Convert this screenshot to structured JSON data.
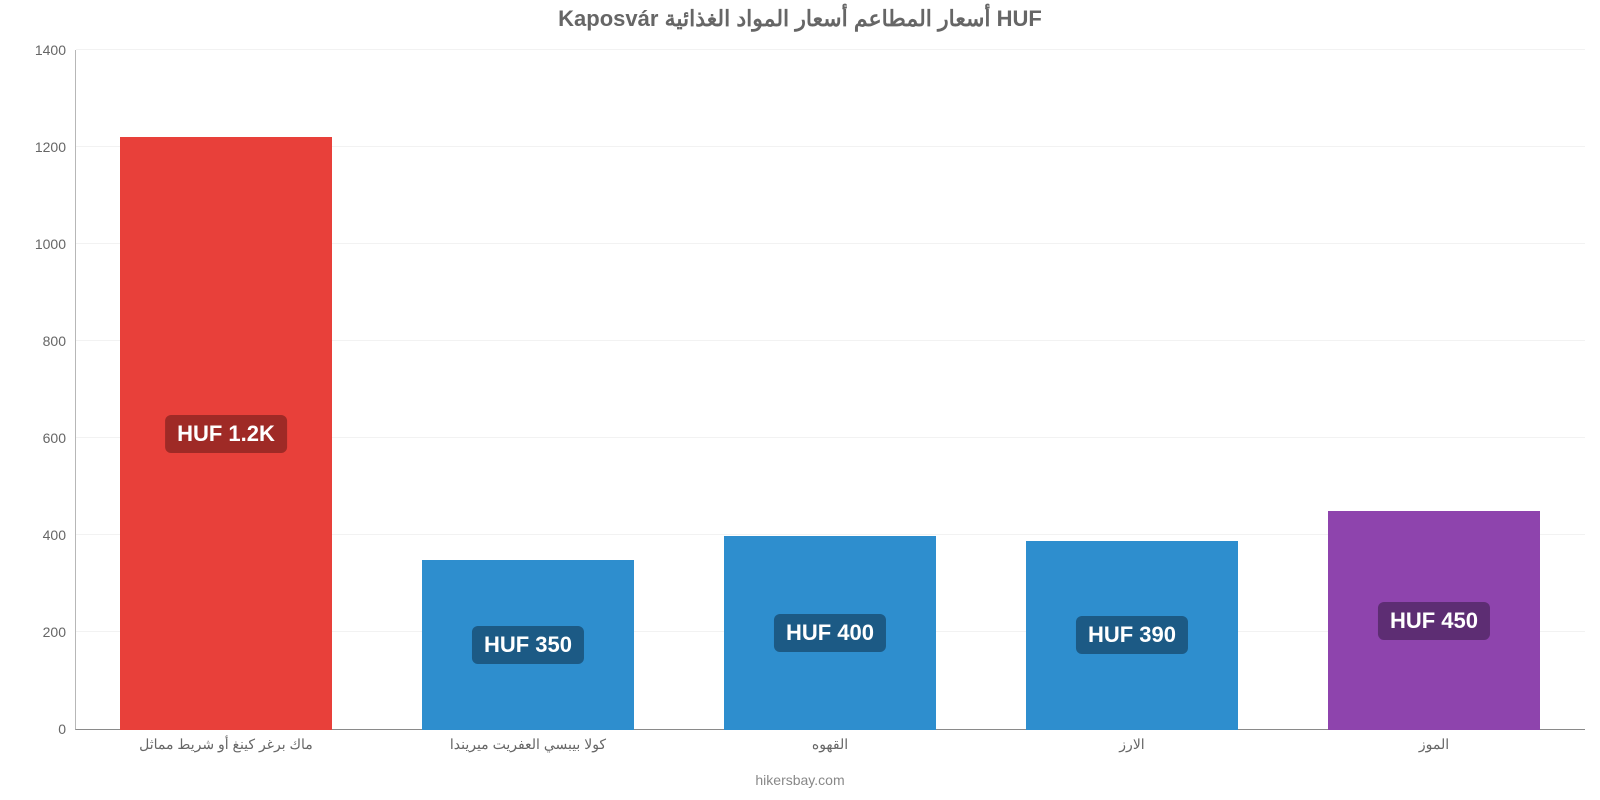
{
  "chart": {
    "type": "bar",
    "title": "Kaposvár أسعار المطاعم أسعار المواد الغذائية HUF",
    "title_color": "#666666",
    "title_fontsize": 22,
    "background_color": "#ffffff",
    "grid_color": "#f2f2f2",
    "axis_color": "#b7b7b7",
    "tick_color": "#666666",
    "tick_fontsize": 14,
    "ylim": [
      0,
      1400
    ],
    "yticks": [
      0,
      200,
      400,
      600,
      800,
      1000,
      1200,
      1400
    ],
    "ytick_labels": [
      "0",
      "200",
      "400",
      "600",
      "800",
      "1000",
      "1200",
      "1400"
    ],
    "bar_width": 0.7,
    "value_label_fontsize": 22,
    "categories": [
      "ماك برغر كينغ أو شريط مماثل",
      "كولا بيبسي العفريت ميريندا",
      "القهوه",
      "الارز",
      "الموز"
    ],
    "values": [
      1220,
      350,
      400,
      390,
      450
    ],
    "value_labels": [
      "HUF 1.2K",
      "HUF 350",
      "HUF 400",
      "HUF 390",
      "HUF 450"
    ],
    "bar_colors": [
      "#e8403a",
      "#2e8ece",
      "#2e8ece",
      "#2e8ece",
      "#8e44ad"
    ],
    "label_bg_colors": [
      "#9f2a26",
      "#1c5a85",
      "#1c5a85",
      "#1c5a85",
      "#5d2d73"
    ],
    "credit": "hikersbay.com",
    "credit_color": "#888888"
  }
}
